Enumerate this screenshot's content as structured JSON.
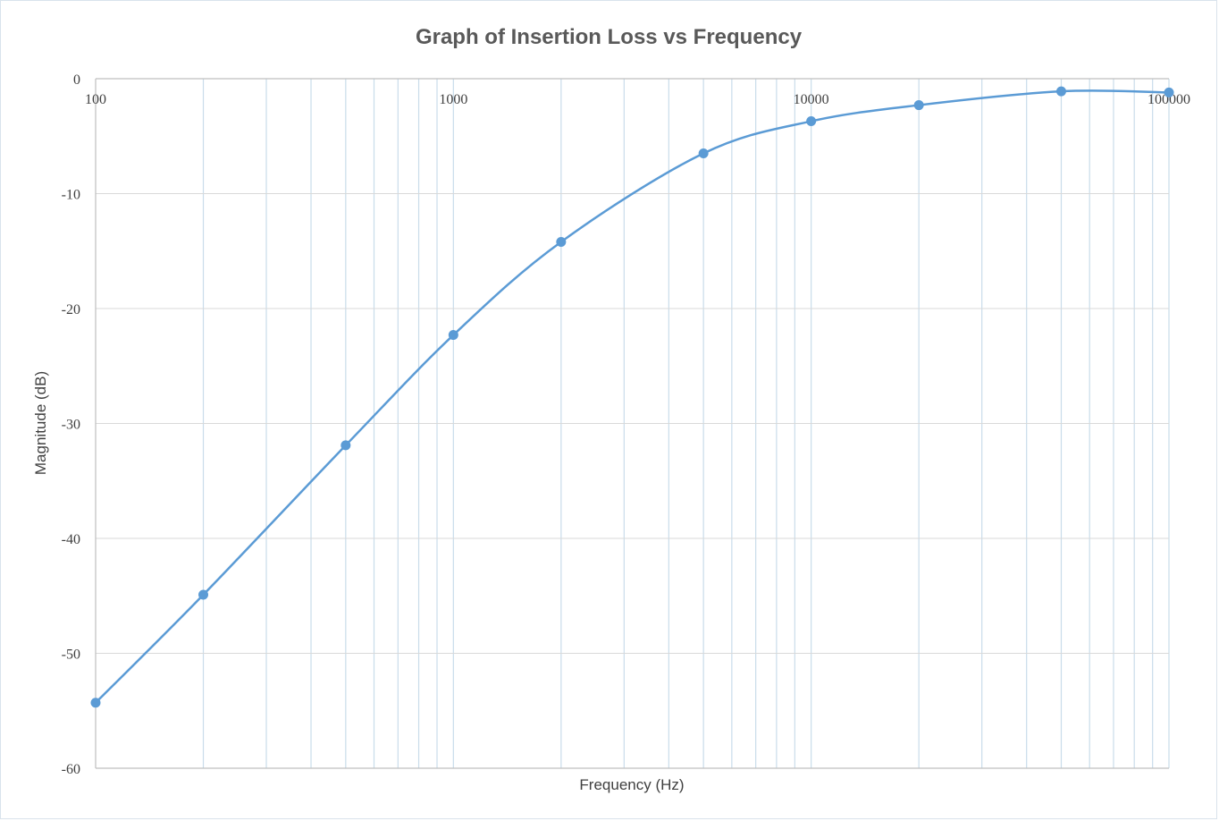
{
  "chart_data": {
    "type": "scatter",
    "title": "Graph of Insertion Loss vs Frequency",
    "xlabel": "Frequency (Hz)",
    "ylabel": "Magnitude (dB)",
    "x_scale": "log",
    "xlim": [
      100,
      100000
    ],
    "ylim": [
      -60,
      0
    ],
    "x_tick_labels": [
      "100",
      "1000",
      "10000",
      "100000"
    ],
    "y_tick_labels": [
      "0",
      "-10",
      "-20",
      "-30",
      "-40",
      "-50",
      "-60"
    ],
    "grid": true,
    "smooth_line": true,
    "series": [
      {
        "color": "#5b9bd5",
        "x": [
          100,
          200,
          500,
          1000,
          2000,
          5000,
          10000,
          20000,
          50000,
          100000
        ],
        "y": [
          -54.3,
          -44.9,
          -31.9,
          -22.3,
          -14.2,
          -6.5,
          -3.7,
          -2.3,
          -1.1,
          -1.2
        ]
      }
    ]
  }
}
